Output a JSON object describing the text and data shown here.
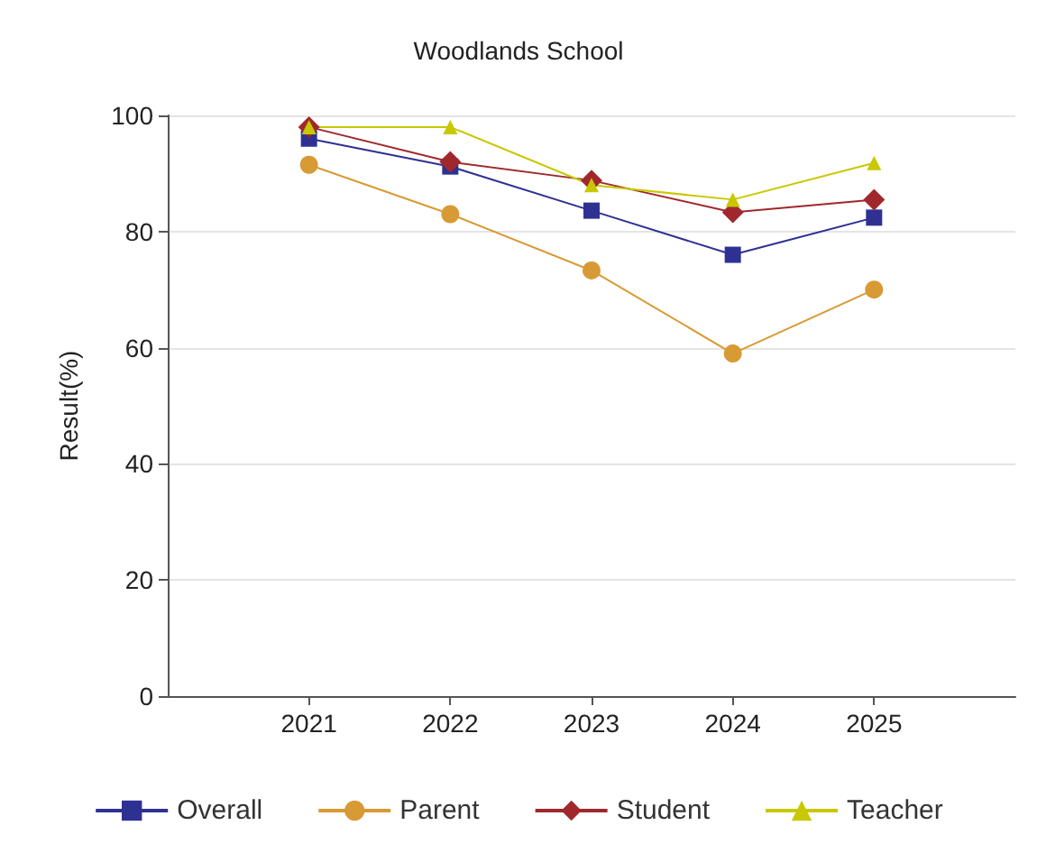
{
  "chart_data": {
    "type": "line",
    "title": "Woodlands School",
    "ylabel": "Result(%)",
    "x": [
      2021,
      2022,
      2023,
      2024,
      2025
    ],
    "xlim": [
      2020,
      2026
    ],
    "xticks": [
      2021,
      2022,
      2023,
      2024,
      2025
    ],
    "ylim": [
      0,
      100
    ],
    "yticks": [
      0,
      20,
      40,
      60,
      80,
      100
    ],
    "grid": "y",
    "legend": "bottom",
    "series": [
      {
        "name": "Overall",
        "color": "#2e3192",
        "marker": "square",
        "values": [
          96,
          91.2,
          83.6,
          76,
          82.4
        ]
      },
      {
        "name": "Parent",
        "color": "#d89a34",
        "marker": "circle",
        "values": [
          91.5,
          83,
          73.3,
          59,
          70
        ]
      },
      {
        "name": "Student",
        "color": "#a0282c",
        "marker": "diamond",
        "values": [
          98,
          92,
          88.8,
          83.3,
          85.5
        ]
      },
      {
        "name": "Teacher",
        "color": "#c8c800",
        "marker": "triangle",
        "values": [
          98,
          98,
          88,
          85.5,
          91.8
        ]
      }
    ]
  }
}
